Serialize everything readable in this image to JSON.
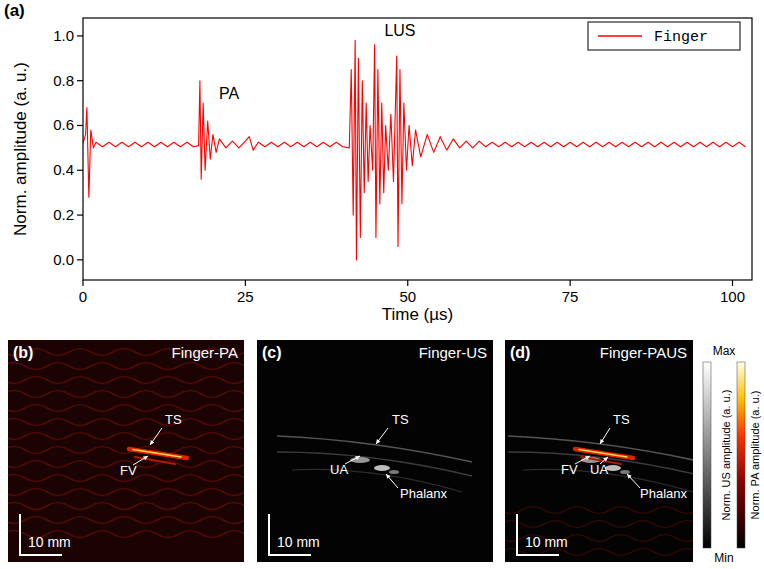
{
  "chart_data": {
    "type": "line",
    "title": "(a)",
    "x_label": "Time (µs)",
    "y_label": "Norm. amplitude (a. u.)",
    "x": [
      0,
      0.4,
      0.6,
      0.9,
      1.2,
      1.6,
      2,
      3,
      4,
      5,
      6,
      7,
      8,
      9,
      10,
      11,
      12,
      13,
      14,
      15,
      16,
      17,
      17.8,
      18.0,
      18.2,
      18.5,
      18.8,
      19.2,
      19.6,
      20.0,
      20.5,
      21,
      22,
      23,
      24,
      25,
      25.6,
      26.2,
      27,
      28,
      29,
      30,
      31,
      32,
      33,
      34,
      35,
      36,
      37,
      38,
      39,
      40,
      41.0,
      41.3,
      41.6,
      41.9,
      42.1,
      42.4,
      42.7,
      43.0,
      43.3,
      43.6,
      43.9,
      44.2,
      44.6,
      44.9,
      45.1,
      45.4,
      45.7,
      46.0,
      46.3,
      46.6,
      47.0,
      47.4,
      47.8,
      48.3,
      48.5,
      48.8,
      49.1,
      49.4,
      49.8,
      50.2,
      50.7,
      51.2,
      52,
      53,
      54,
      55,
      56,
      57,
      58,
      59,
      60,
      61,
      62,
      63,
      64,
      65,
      66,
      67,
      68,
      69,
      70,
      71,
      72,
      73,
      74,
      75,
      76,
      77,
      78,
      79,
      80,
      81,
      82,
      83,
      84,
      85,
      86,
      87,
      88,
      89,
      90,
      91,
      92,
      93,
      94,
      95,
      96,
      97,
      98,
      99,
      100,
      101,
      102
    ],
    "series": [
      {
        "name": "Finger",
        "color": "#ff0000",
        "values": [
          0.52,
          0.56,
          0.68,
          0.28,
          0.58,
          0.5,
          0.525,
          0.505,
          0.525,
          0.505,
          0.525,
          0.505,
          0.525,
          0.505,
          0.525,
          0.505,
          0.525,
          0.505,
          0.525,
          0.505,
          0.525,
          0.505,
          0.51,
          0.8,
          0.36,
          0.7,
          0.4,
          0.62,
          0.45,
          0.56,
          0.48,
          0.54,
          0.5,
          0.53,
          0.5,
          0.53,
          0.55,
          0.49,
          0.525,
          0.505,
          0.525,
          0.505,
          0.525,
          0.505,
          0.525,
          0.505,
          0.525,
          0.505,
          0.525,
          0.505,
          0.525,
          0.505,
          0.5,
          0.85,
          0.2,
          0.98,
          0.0,
          0.9,
          0.1,
          0.8,
          0.3,
          0.7,
          0.35,
          0.6,
          0.4,
          0.96,
          0.1,
          0.85,
          0.25,
          0.7,
          0.3,
          0.6,
          0.4,
          0.65,
          0.35,
          0.91,
          0.06,
          0.85,
          0.25,
          0.7,
          0.4,
          0.6,
          0.42,
          0.58,
          0.46,
          0.56,
          0.48,
          0.55,
          0.49,
          0.54,
          0.5,
          0.53,
          0.5,
          0.53,
          0.505,
          0.525,
          0.505,
          0.525,
          0.505,
          0.525,
          0.505,
          0.525,
          0.505,
          0.525,
          0.505,
          0.525,
          0.505,
          0.525,
          0.505,
          0.525,
          0.505,
          0.525,
          0.505,
          0.525,
          0.505,
          0.525,
          0.505,
          0.525,
          0.505,
          0.525,
          0.505,
          0.525,
          0.505,
          0.525,
          0.505,
          0.525,
          0.505,
          0.525,
          0.505,
          0.525,
          0.505,
          0.525,
          0.505,
          0.525,
          0.505
        ]
      }
    ],
    "xlim": [
      0,
      103
    ],
    "xticks": [
      0,
      25,
      50,
      75,
      100
    ],
    "ylim": [
      -0.09,
      1.08
    ],
    "yticks": [
      {
        "value": 0,
        "label": "0.0"
      },
      {
        "value": 0.2,
        "label": "0.2"
      },
      {
        "value": 0.4,
        "label": "0.4"
      },
      {
        "value": 0.6,
        "label": "0.6"
      },
      {
        "value": 0.8,
        "label": "0.8"
      },
      {
        "value": 1.0,
        "label": "1.0"
      }
    ],
    "annotations": [
      {
        "text": "PA",
        "x": 22.5,
        "y": 0.72
      },
      {
        "text": "LUS",
        "x": 48.8,
        "y": 1.0
      }
    ],
    "grid": false,
    "legend": "top-right"
  },
  "figure": {
    "image_panels": [
      {
        "label": "(b)",
        "title": "Finger-PA",
        "annotations": [
          "TS",
          "FV"
        ],
        "scale_bar": "10 mm"
      },
      {
        "label": "(c)",
        "title": "Finger-US",
        "annotations": [
          "TS",
          "UA",
          "Phalanx"
        ],
        "scale_bar": "10 mm"
      },
      {
        "label": "(d)",
        "title": "Finger-PAUS",
        "annotations": [
          "TS",
          "FV",
          "UA",
          "Phalanx"
        ],
        "scale_bar": "10 mm"
      }
    ],
    "colorbars": {
      "max": "Max",
      "min": "Min",
      "us_title": "Norm. US amplitude (a. u.)",
      "pa_title": "Norm. PA amplitude (a. u.)"
    }
  }
}
